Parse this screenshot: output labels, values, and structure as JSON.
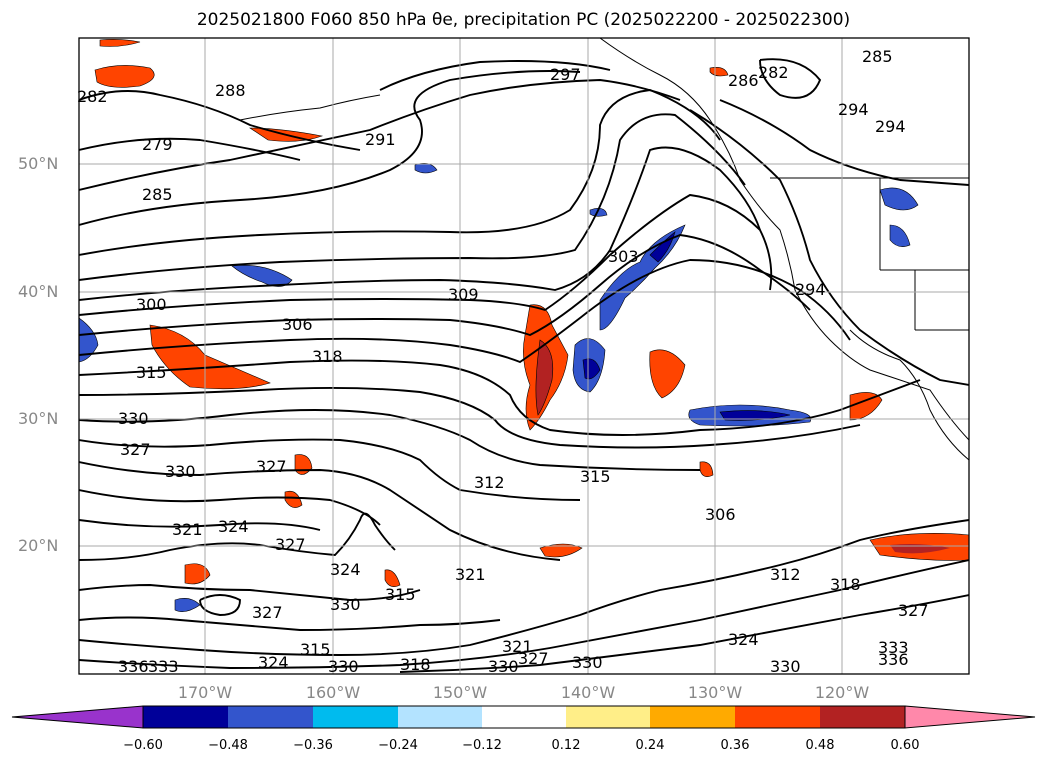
{
  "title": "2025021800 F060 850 hPa θe, precipitation PC (2025022200 - 2025022300)",
  "map": {
    "lat_labels": [
      "50°N",
      "40°N",
      "30°N",
      "20°N"
    ],
    "lon_labels": [
      "170°W",
      "160°W",
      "150°W",
      "140°W",
      "130°W",
      "120°W"
    ],
    "gridlines": true,
    "contour_labels": [
      "297",
      "288",
      "282",
      "286",
      "282",
      "285",
      "282",
      "279",
      "291",
      "285",
      "294",
      "294",
      "303",
      "300",
      "309",
      "306",
      "318",
      "315",
      "294",
      "330",
      "327",
      "330",
      "327",
      "312",
      "315",
      "306",
      "321",
      "324",
      "327",
      "324",
      "321",
      "327",
      "330",
      "315",
      "312",
      "318",
      "327",
      "330",
      "315",
      "324",
      "336",
      "333",
      "321",
      "327",
      "330",
      "318",
      "330",
      "324",
      "330",
      "336",
      "333"
    ]
  },
  "colorbar": {
    "ticks": [
      "−0.60",
      "−0.48",
      "−0.36",
      "−0.24",
      "−0.12",
      "0.12",
      "0.24",
      "0.36",
      "0.48",
      "0.60"
    ],
    "colors": [
      "#9933cc",
      "#000099",
      "#3355cc",
      "#00bbee",
      "#b3e3ff",
      "#ffffff",
      "#ffee88",
      "#ffaa00",
      "#ff4400",
      "#b22222",
      "#ff88aa"
    ]
  }
}
